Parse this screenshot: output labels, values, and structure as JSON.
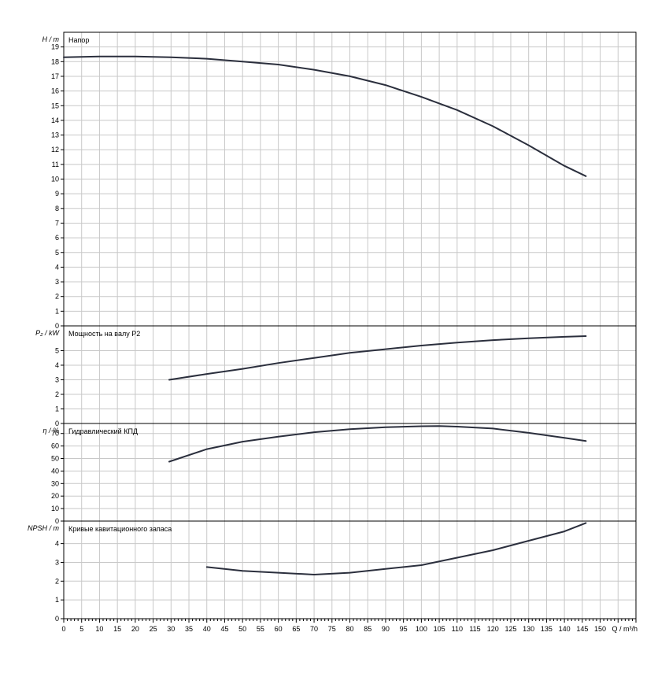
{
  "chart_data": [
    {
      "type": "line",
      "title": "Напор",
      "ylabel": "H / m",
      "ylim": [
        0,
        20
      ],
      "yticks": [
        0,
        1,
        2,
        3,
        4,
        5,
        6,
        7,
        8,
        9,
        10,
        11,
        12,
        13,
        14,
        15,
        16,
        17,
        18,
        19
      ],
      "series": [
        {
          "x": [
            0,
            10,
            20,
            30,
            40,
            50,
            60,
            70,
            80,
            90,
            100,
            110,
            120,
            130,
            140,
            146
          ],
          "y": [
            18.3,
            18.35,
            18.35,
            18.3,
            18.2,
            18.0,
            17.8,
            17.45,
            17.0,
            16.4,
            15.6,
            14.7,
            13.6,
            12.3,
            10.9,
            10.2
          ]
        }
      ]
    },
    {
      "type": "line",
      "title": "Мощность на валу P2",
      "ylabel": "P₂ / kW",
      "ylim": [
        0,
        6.7
      ],
      "yticks": [
        0,
        1,
        2,
        3,
        4,
        5
      ],
      "series": [
        {
          "x": [
            29.5,
            40,
            50,
            60,
            70,
            80,
            90,
            100,
            110,
            120,
            130,
            140,
            146
          ],
          "y": [
            3.0,
            3.4,
            3.75,
            4.15,
            4.5,
            4.85,
            5.1,
            5.35,
            5.55,
            5.72,
            5.85,
            5.95,
            6.0
          ]
        }
      ]
    },
    {
      "type": "line",
      "title": "Гидравлический КПД",
      "ylabel": "η / %",
      "ylim": [
        0,
        78
      ],
      "yticks": [
        0,
        10,
        20,
        30,
        40,
        50,
        60,
        70
      ],
      "series": [
        {
          "x": [
            29.5,
            40,
            50,
            60,
            70,
            80,
            90,
            100,
            105,
            110,
            120,
            130,
            140,
            146
          ],
          "y": [
            47.5,
            57.5,
            63.5,
            67.5,
            71.0,
            73.5,
            75.0,
            75.8,
            76.0,
            75.5,
            74.0,
            70.5,
            66.5,
            64.0
          ]
        }
      ]
    },
    {
      "type": "line",
      "title": "Кривые кавитационного запаса",
      "ylabel": "NPSH / m",
      "ylim": [
        0,
        5.2
      ],
      "yticks": [
        0,
        1,
        2,
        3,
        4
      ],
      "xlabel": "Q / m³/h",
      "xlim": [
        0,
        160
      ],
      "xticks": [
        0,
        5,
        10,
        15,
        20,
        25,
        30,
        35,
        40,
        45,
        50,
        55,
        60,
        65,
        70,
        75,
        80,
        85,
        90,
        95,
        100,
        105,
        110,
        115,
        120,
        125,
        130,
        135,
        140,
        145,
        150
      ],
      "series": [
        {
          "x": [
            40,
            50,
            60,
            70,
            80,
            90,
            100,
            110,
            120,
            130,
            140,
            146
          ],
          "y": [
            2.75,
            2.55,
            2.45,
            2.35,
            2.45,
            2.65,
            2.85,
            3.25,
            3.65,
            4.15,
            4.65,
            5.1
          ]
        }
      ]
    }
  ]
}
